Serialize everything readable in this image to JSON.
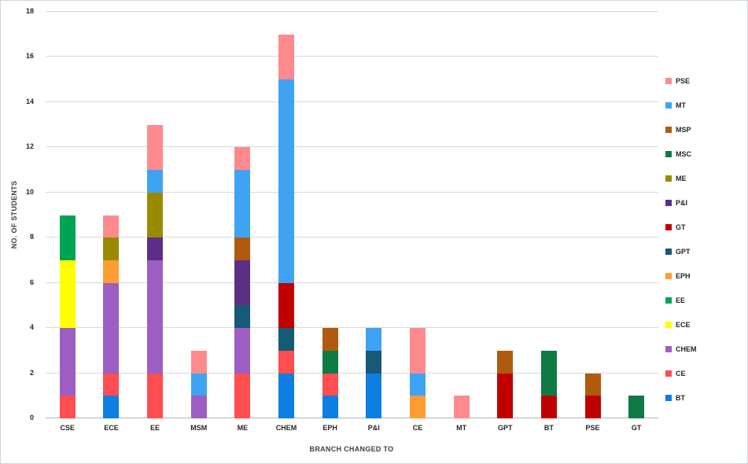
{
  "chart_data": {
    "type": "bar",
    "stacked": true,
    "title": "",
    "xlabel": "BRANCH CHANGED TO",
    "ylabel": "NO. OF STUDENTS",
    "ylim": [
      0,
      18
    ],
    "ytick_step": 2,
    "grid": true,
    "legend_position": "right",
    "categories": [
      "CSE",
      "ECE",
      "EE",
      "MSM",
      "ME",
      "CHEM",
      "EPH",
      "P&I",
      "CE",
      "MT",
      "GPT",
      "BT",
      "PSE",
      "GT"
    ],
    "series": [
      {
        "name": "BT",
        "color": "#0E7EE3",
        "values": [
          0,
          1,
          0,
          0,
          0,
          2,
          1,
          2,
          0,
          0,
          0,
          0,
          0,
          0
        ]
      },
      {
        "name": "CE",
        "color": "#FF4D50",
        "values": [
          1,
          1,
          2,
          0,
          2,
          1,
          1,
          0,
          0,
          0,
          0,
          0,
          0,
          0
        ]
      },
      {
        "name": "CHEM",
        "color": "#9C5EC3",
        "values": [
          3,
          4,
          5,
          1,
          2,
          0,
          0,
          0,
          0,
          0,
          0,
          0,
          0,
          0
        ]
      },
      {
        "name": "ECE",
        "color": "#FFFF00",
        "values": [
          3,
          0,
          0,
          0,
          0,
          0,
          0,
          0,
          0,
          0,
          0,
          0,
          0,
          0
        ]
      },
      {
        "name": "EE",
        "color": "#00A551",
        "values": [
          2,
          0,
          0,
          0,
          0,
          0,
          0,
          0,
          0,
          0,
          0,
          0,
          0,
          0
        ]
      },
      {
        "name": "EPH",
        "color": "#FF9C33",
        "values": [
          0,
          1,
          0,
          0,
          0,
          0,
          0,
          0,
          1,
          0,
          0,
          0,
          0,
          0
        ]
      },
      {
        "name": "GPT",
        "color": "#175A76",
        "values": [
          0,
          0,
          0,
          0,
          1,
          1,
          0,
          1,
          0,
          0,
          0,
          0,
          0,
          0
        ]
      },
      {
        "name": "GT",
        "color": "#C00000",
        "values": [
          0,
          0,
          0,
          0,
          0,
          2,
          0,
          0,
          0,
          0,
          2,
          1,
          1,
          0
        ]
      },
      {
        "name": "P&I",
        "color": "#5C2E86",
        "values": [
          0,
          0,
          1,
          0,
          2,
          0,
          0,
          0,
          0,
          0,
          0,
          0,
          0,
          0
        ]
      },
      {
        "name": "ME",
        "color": "#9A8A00",
        "values": [
          0,
          1,
          2,
          0,
          0,
          0,
          0,
          0,
          0,
          0,
          0,
          0,
          0,
          0
        ]
      },
      {
        "name": "MSC",
        "color": "#0E7B45",
        "values": [
          0,
          0,
          0,
          0,
          0,
          0,
          1,
          0,
          0,
          0,
          0,
          2,
          0,
          1
        ]
      },
      {
        "name": "MSP",
        "color": "#B05A0E",
        "values": [
          0,
          0,
          0,
          0,
          1,
          0,
          1,
          0,
          0,
          0,
          1,
          0,
          1,
          0
        ]
      },
      {
        "name": "MT",
        "color": "#3EA3F2",
        "values": [
          0,
          0,
          1,
          1,
          3,
          9,
          0,
          1,
          1,
          0,
          0,
          0,
          0,
          0
        ]
      },
      {
        "name": "PSE",
        "color": "#FF8A8D",
        "values": [
          0,
          1,
          2,
          1,
          1,
          2,
          0,
          0,
          2,
          1,
          0,
          0,
          0,
          0
        ]
      }
    ]
  }
}
